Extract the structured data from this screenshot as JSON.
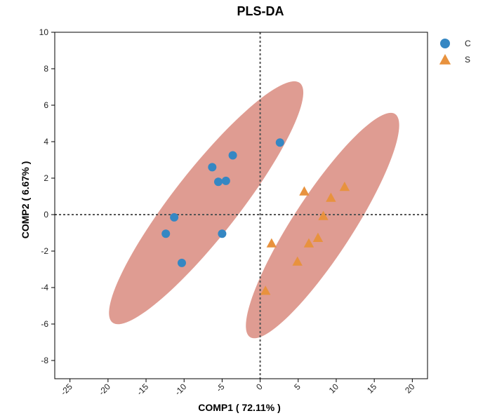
{
  "chart_data": {
    "type": "scatter",
    "title": "PLS-DA",
    "xlabel": "COMP1 ( 72.11% )",
    "ylabel": "COMP2 ( 6.67% )",
    "xlim": [
      -27,
      22
    ],
    "ylim": [
      -9,
      10
    ],
    "xticks": [
      -25,
      -20,
      -15,
      -10,
      -5,
      0,
      5,
      10,
      15,
      20
    ],
    "yticks": [
      -8,
      -6,
      -4,
      -2,
      0,
      2,
      4,
      6,
      8,
      10
    ],
    "reference_lines": {
      "x": 0,
      "y": 0,
      "style": "dashed"
    },
    "legend_position": "top-right",
    "ellipse_color": "#d98b7f",
    "series": [
      {
        "name": "C",
        "marker": "circle",
        "color": "#3587c3",
        "points": [
          [
            2.6,
            3.95
          ],
          [
            -3.6,
            3.25
          ],
          [
            -6.3,
            2.6
          ],
          [
            -5.5,
            1.8
          ],
          [
            -4.5,
            1.85
          ],
          [
            -11.3,
            -0.15
          ],
          [
            -12.4,
            -1.05
          ],
          [
            -5.0,
            -1.05
          ],
          [
            -10.3,
            -2.65
          ]
        ],
        "ellipse": {
          "cx": -7.1,
          "cy": 0.65,
          "rx": 20.0,
          "ry": 4.3,
          "angle_deg": 52
        }
      },
      {
        "name": "S",
        "marker": "triangle",
        "color": "#e8923e",
        "points": [
          [
            5.8,
            1.25
          ],
          [
            11.1,
            1.5
          ],
          [
            9.3,
            0.9
          ],
          [
            8.3,
            -0.1
          ],
          [
            1.5,
            -1.6
          ],
          [
            7.6,
            -1.3
          ],
          [
            6.4,
            -1.6
          ],
          [
            4.9,
            -2.6
          ],
          [
            0.7,
            -4.2
          ]
        ],
        "ellipse": {
          "cx": 8.2,
          "cy": -0.6,
          "rx": 17.5,
          "ry": 3.9,
          "angle_deg": 57
        }
      }
    ]
  }
}
